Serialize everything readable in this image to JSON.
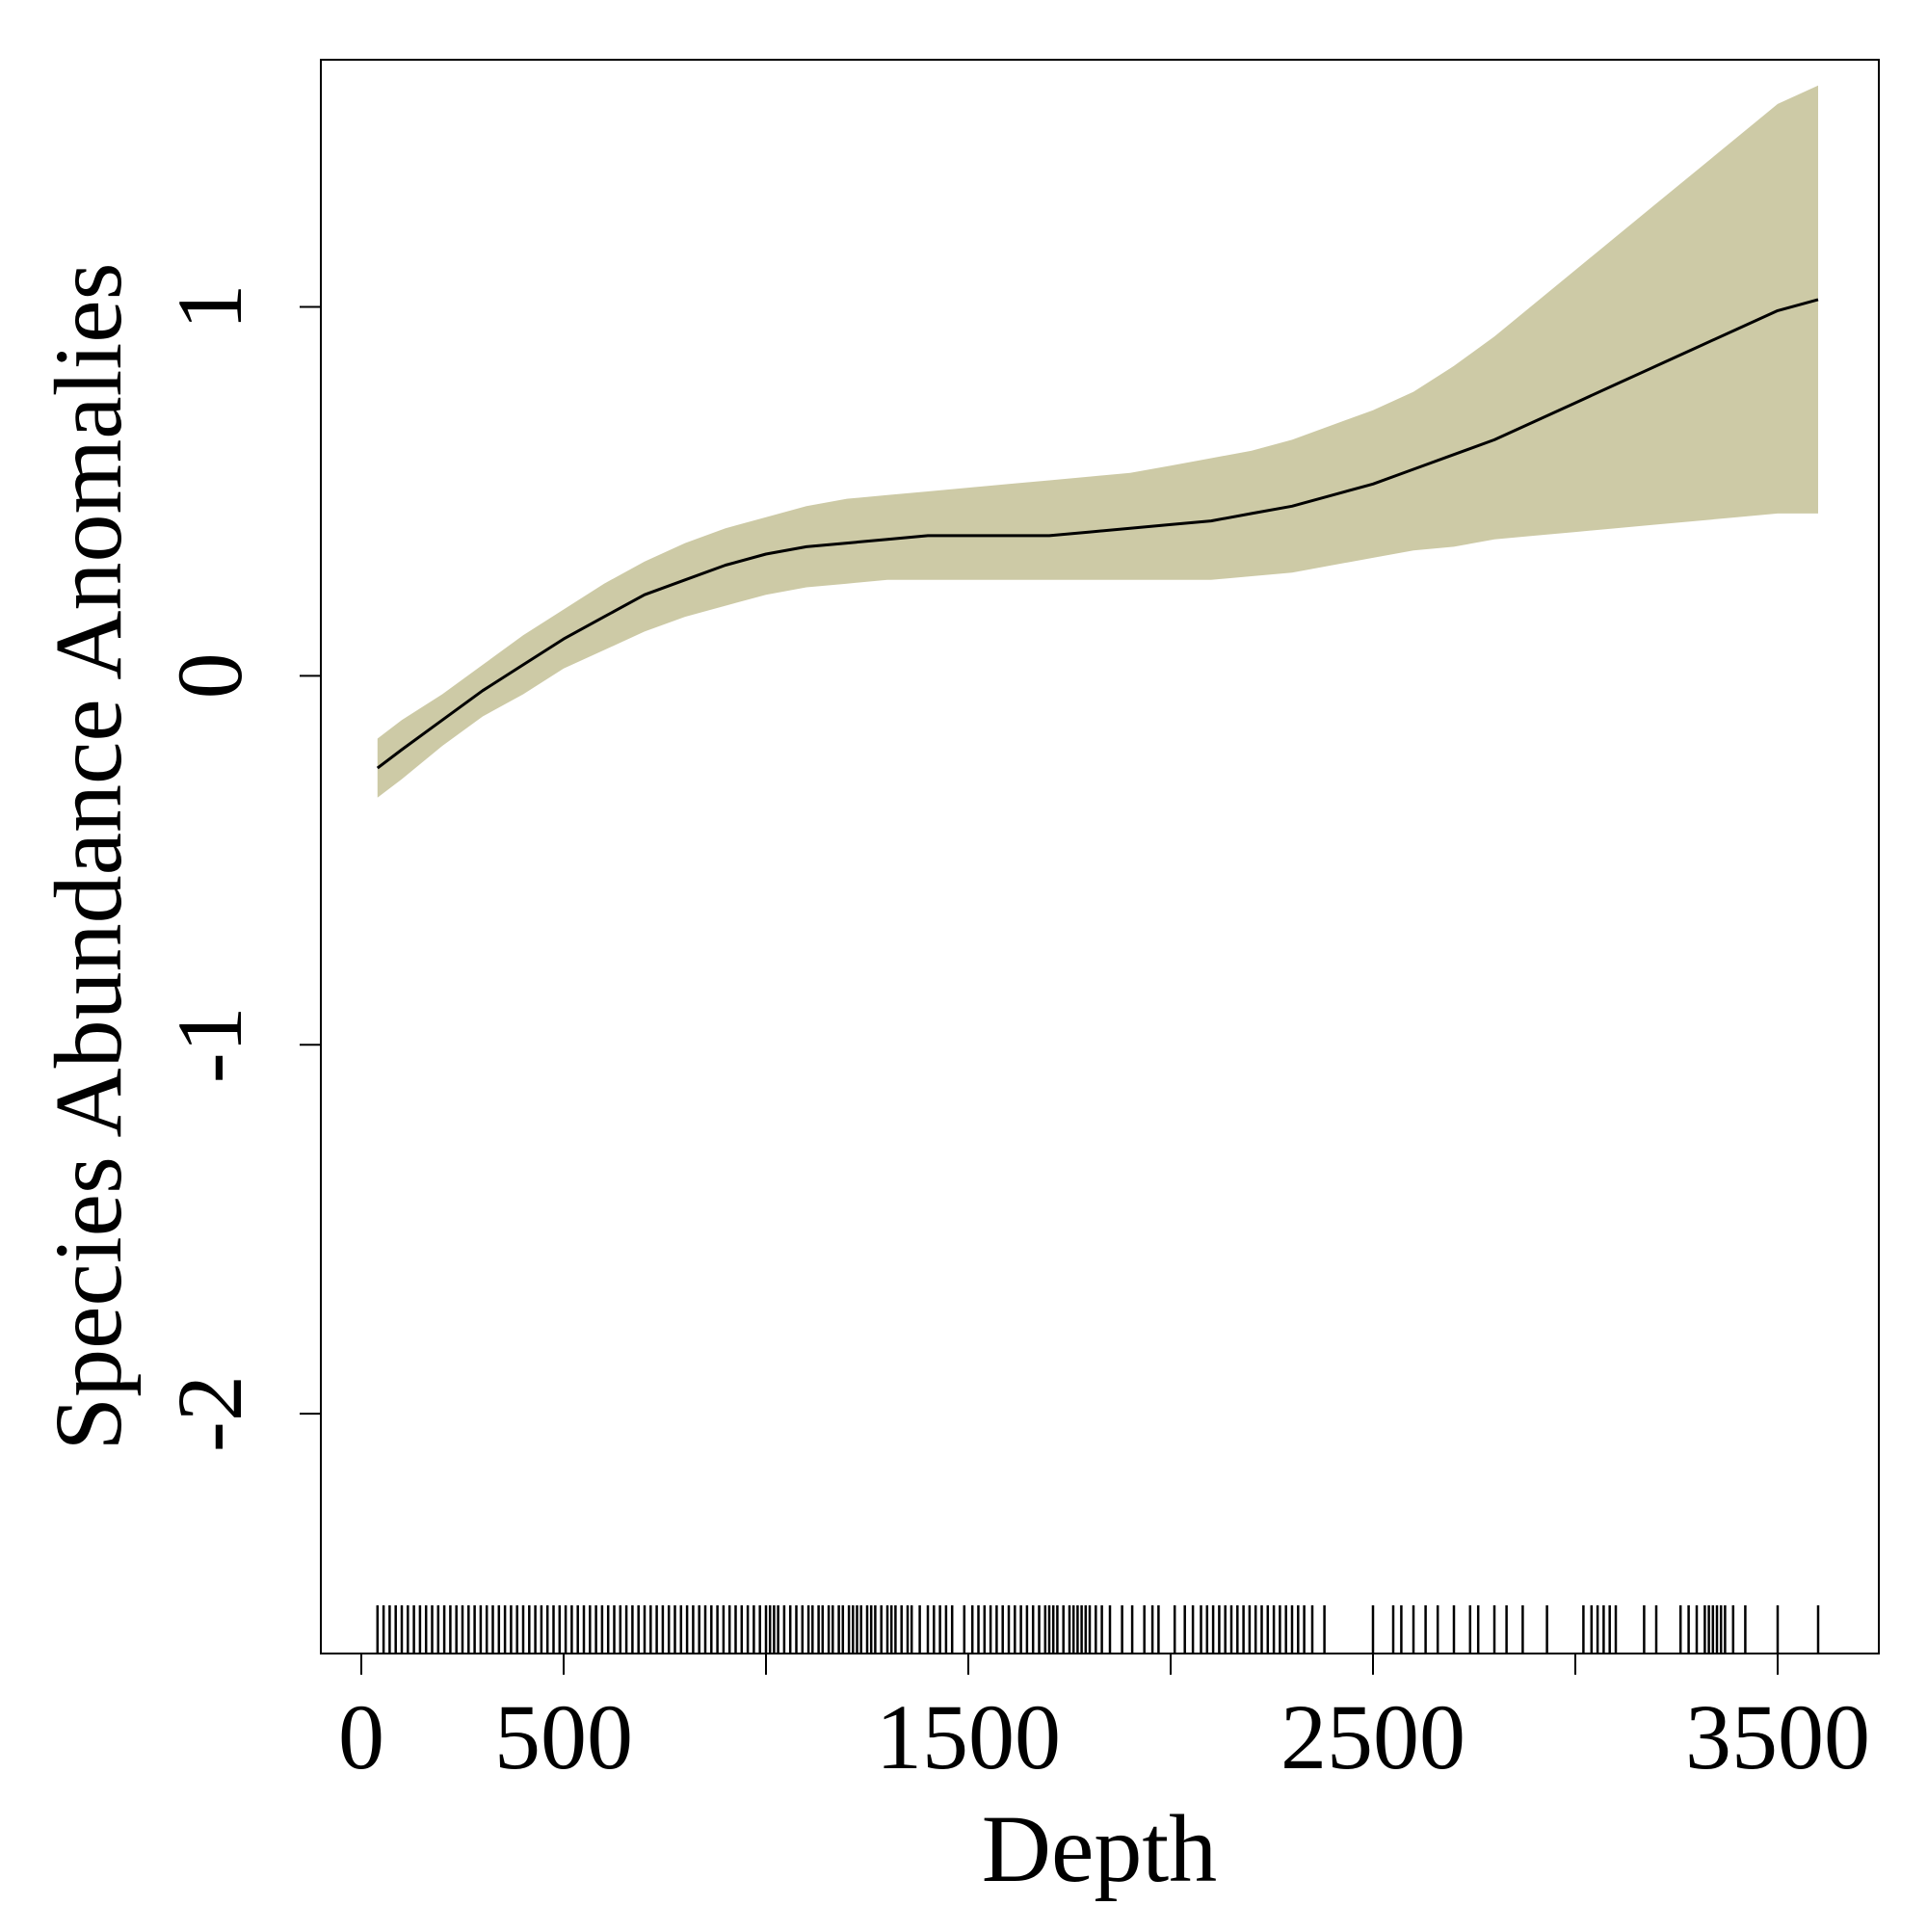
{
  "chart_data": {
    "type": "line",
    "title": "",
    "xlabel": "Depth",
    "ylabel": "Species Abundance Anomalies",
    "xlim": [
      -100,
      3750
    ],
    "ylim": [
      -2.65,
      1.67
    ],
    "x_ticks": [
      0,
      500,
      1000,
      1500,
      2000,
      2500,
      3000,
      3500
    ],
    "x_tick_labels": [
      "0",
      "500",
      "",
      "1500",
      "",
      "2500",
      "",
      "3500"
    ],
    "y_ticks": [
      -2,
      -1,
      0,
      1
    ],
    "y_tick_labels": [
      "-2",
      "-1",
      "0",
      "1"
    ],
    "grid": false,
    "colors": {
      "band": "#cdcaa6",
      "line": "#000000",
      "axis": "#000000"
    },
    "series": [
      {
        "x": [
          40,
          100,
          200,
          300,
          400,
          500,
          600,
          700,
          800,
          900,
          1000,
          1100,
          1200,
          1300,
          1400,
          1500,
          1600,
          1700,
          1800,
          1900,
          2000,
          2100,
          2200,
          2300,
          2400,
          2500,
          2600,
          2700,
          2800,
          2900,
          3000,
          3100,
          3200,
          3300,
          3400,
          3500,
          3600
        ],
        "y": [
          -0.25,
          -0.2,
          -0.12,
          -0.04,
          0.03,
          0.1,
          0.16,
          0.22,
          0.26,
          0.3,
          0.33,
          0.35,
          0.36,
          0.37,
          0.38,
          0.38,
          0.38,
          0.38,
          0.39,
          0.4,
          0.41,
          0.42,
          0.44,
          0.46,
          0.49,
          0.52,
          0.56,
          0.6,
          0.64,
          0.69,
          0.74,
          0.79,
          0.84,
          0.89,
          0.94,
          0.99,
          1.02
        ],
        "lower": [
          -0.33,
          -0.28,
          -0.19,
          -0.11,
          -0.05,
          0.02,
          0.07,
          0.12,
          0.16,
          0.19,
          0.22,
          0.24,
          0.25,
          0.26,
          0.26,
          0.26,
          0.26,
          0.26,
          0.26,
          0.26,
          0.26,
          0.26,
          0.27,
          0.28,
          0.3,
          0.32,
          0.34,
          0.35,
          0.37,
          0.38,
          0.39,
          0.4,
          0.41,
          0.42,
          0.43,
          0.44,
          0.44
        ],
        "upper": [
          -0.17,
          -0.12,
          -0.05,
          0.03,
          0.11,
          0.18,
          0.25,
          0.31,
          0.36,
          0.4,
          0.43,
          0.46,
          0.48,
          0.49,
          0.5,
          0.51,
          0.52,
          0.53,
          0.54,
          0.55,
          0.57,
          0.59,
          0.61,
          0.64,
          0.68,
          0.72,
          0.77,
          0.84,
          0.92,
          1.01,
          1.1,
          1.19,
          1.28,
          1.37,
          1.46,
          1.55,
          1.6
        ]
      }
    ],
    "rug": [
      40,
      55,
      70,
      85,
      100,
      115,
      130,
      145,
      160,
      175,
      190,
      205,
      220,
      235,
      250,
      265,
      280,
      295,
      310,
      325,
      340,
      355,
      370,
      385,
      400,
      415,
      430,
      445,
      460,
      475,
      490,
      505,
      520,
      535,
      550,
      565,
      580,
      595,
      610,
      625,
      640,
      655,
      670,
      685,
      700,
      715,
      730,
      745,
      760,
      775,
      790,
      805,
      820,
      835,
      850,
      865,
      880,
      895,
      910,
      925,
      940,
      955,
      970,
      985,
      1000,
      1010,
      1020,
      1030,
      1045,
      1060,
      1075,
      1090,
      1105,
      1115,
      1130,
      1140,
      1155,
      1165,
      1180,
      1190,
      1205,
      1215,
      1225,
      1235,
      1250,
      1260,
      1270,
      1285,
      1300,
      1310,
      1320,
      1335,
      1350,
      1360,
      1380,
      1400,
      1415,
      1430,
      1445,
      1460,
      1490,
      1510,
      1525,
      1540,
      1555,
      1570,
      1585,
      1600,
      1615,
      1630,
      1645,
      1660,
      1675,
      1690,
      1700,
      1710,
      1720,
      1735,
      1750,
      1760,
      1770,
      1780,
      1790,
      1800,
      1815,
      1830,
      1850,
      1880,
      1905,
      1935,
      1955,
      1970,
      2010,
      2035,
      2055,
      2075,
      2090,
      2105,
      2120,
      2135,
      2150,
      2165,
      2180,
      2195,
      2210,
      2225,
      2240,
      2255,
      2270,
      2285,
      2300,
      2315,
      2330,
      2350,
      2380,
      2500,
      2550,
      2570,
      2600,
      2630,
      2660,
      2700,
      2740,
      2760,
      2800,
      2830,
      2870,
      2930,
      3020,
      3040,
      3055,
      3070,
      3085,
      3100,
      3170,
      3200,
      3260,
      3280,
      3300,
      3320,
      3330,
      3340,
      3350,
      3360,
      3370,
      3390,
      3420,
      3500,
      3600
    ]
  }
}
